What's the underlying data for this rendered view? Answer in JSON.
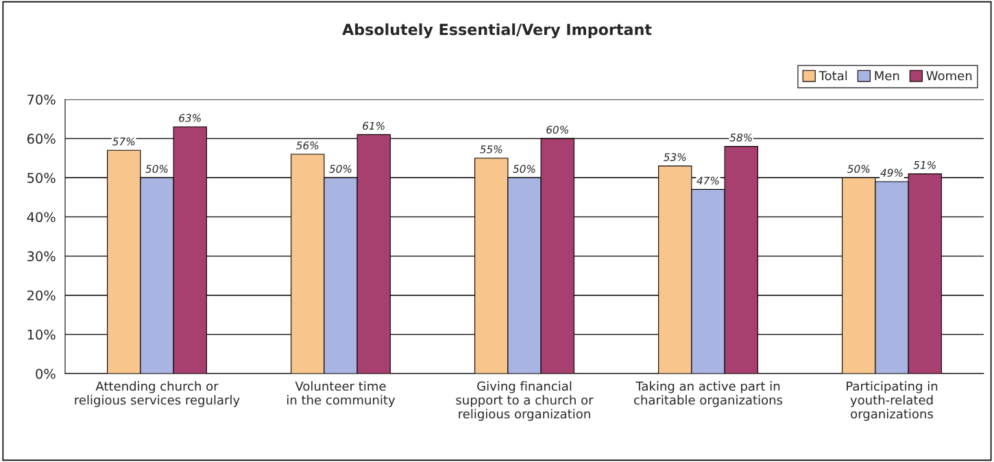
{
  "chart_data": {
    "type": "bar",
    "title": "Absolutely Essential/Very Important",
    "categories": [
      "Attending church or\nreligious services regularly",
      "Volunteer time\nin the community",
      "Giving financial\nsupport to a church or\nreligious organization",
      "Taking an active part in\ncharitable organizations",
      "Participating in\nyouth-related\norganizations"
    ],
    "series": [
      {
        "name": "Total",
        "color": "#f8c68c",
        "values": [
          57,
          56,
          55,
          53,
          50
        ],
        "value_labels": [
          "57%",
          "56%",
          "55%",
          "53%",
          "50%"
        ]
      },
      {
        "name": "Men",
        "color": "#aab4e2",
        "values": [
          50,
          50,
          50,
          47,
          49
        ],
        "value_labels": [
          "50%",
          "50%",
          "50%",
          "47%",
          "49%"
        ]
      },
      {
        "name": "Women",
        "color": "#a8406f",
        "values": [
          63,
          61,
          60,
          58,
          51
        ],
        "value_labels": [
          "63%",
          "61%",
          "60%",
          "58%",
          "51%"
        ]
      }
    ],
    "ylim": [
      0,
      70
    ],
    "yticks": [
      {
        "value": 0,
        "label": "0%"
      },
      {
        "value": 10,
        "label": "10%"
      },
      {
        "value": 20,
        "label": "20%"
      },
      {
        "value": 30,
        "label": "30%"
      },
      {
        "value": 40,
        "label": "40%"
      },
      {
        "value": 50,
        "label": "50%"
      },
      {
        "value": 60,
        "label": "60%"
      },
      {
        "value": 70,
        "label": "70%"
      }
    ],
    "grid": "y",
    "legend": "top right"
  }
}
